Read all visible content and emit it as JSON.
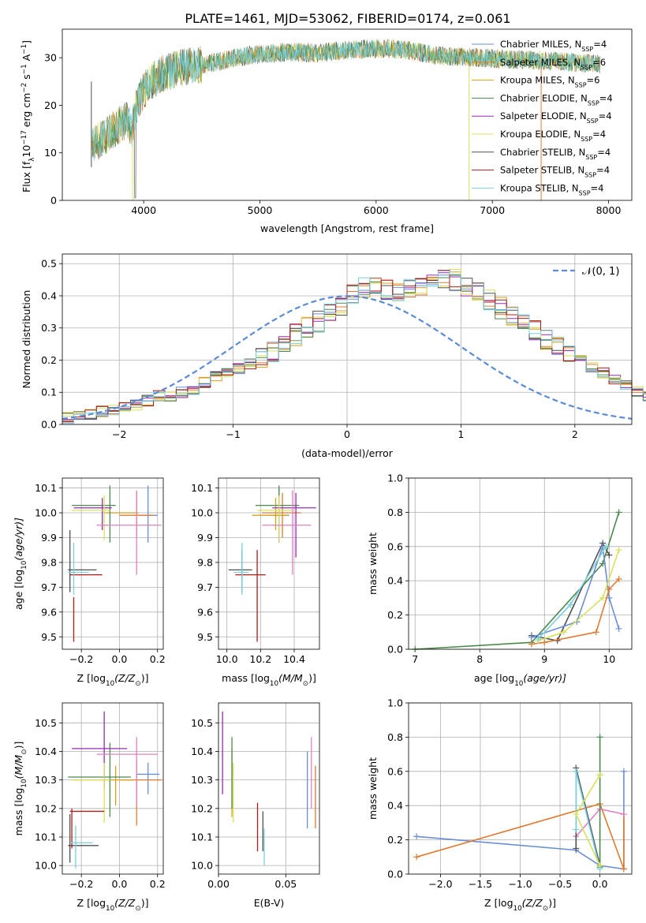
{
  "title": "PLATE=1461, MJD=53062, FIBERID=0174, z=0.061",
  "colors": {
    "chabrier_miles": "#6a8fd6",
    "salpeter_miles": "#e07a30",
    "kroupa_miles": "#d4a017",
    "chabrier_elodie": "#4c8a4c",
    "salpeter_elodie": "#9a2ab8",
    "kroupa_elodie": "#d8e060",
    "chabrier_stelib": "#505050",
    "salpeter_stelib": "#b01c1c",
    "kroupa_stelib": "#78d0e0",
    "pink": "#e080c0",
    "normal": "#5b8bd6"
  },
  "chart_data": [
    {
      "id": "spectrum",
      "type": "line",
      "xlabel": "wavelength [Angstrom, rest frame]",
      "ylabel": "Flux [f",
      "ylabel_parts": [
        "Flux [f",
        "λ",
        "10",
        "−17",
        " erg cm",
        "−2",
        " s",
        "−1",
        " A",
        "−1",
        "]"
      ],
      "xlim": [
        3300,
        8200
      ],
      "ylim": [
        0,
        36
      ],
      "xticks": [
        "4000",
        "5000",
        "6000",
        "7000",
        "8000"
      ],
      "yticks": [
        "0",
        "10",
        "20",
        "30"
      ],
      "legend": [
        {
          "name": "Chabrier MILES, N",
          "n": "4"
        },
        {
          "name": "Salpeter MILES, N",
          "n": "6"
        },
        {
          "name": "Kroupa MILES, N",
          "n": "6"
        },
        {
          "name": "Chabrier ELODIE, N",
          "n": "4"
        },
        {
          "name": "Salpeter ELODIE, N",
          "n": "4"
        },
        {
          "name": "Kroupa ELODIE, N",
          "n": "4"
        },
        {
          "name": "Chabrier STELIB, N",
          "n": "4"
        },
        {
          "name": "Salpeter STELIB, N",
          "n": "4"
        },
        {
          "name": "Kroupa STELIB, N",
          "n": "4"
        }
      ],
      "legend_sub": "SSP",
      "continuum": [
        [
          3550,
          12
        ],
        [
          3650,
          13
        ],
        [
          3750,
          15
        ],
        [
          3850,
          17
        ],
        [
          3900,
          15
        ],
        [
          3950,
          21
        ],
        [
          4050,
          25
        ],
        [
          4200,
          27
        ],
        [
          4350,
          28
        ],
        [
          4500,
          28.5
        ],
        [
          4700,
          29.5
        ],
        [
          4900,
          30.5
        ],
        [
          5100,
          31
        ],
        [
          5300,
          31.2
        ],
        [
          5500,
          31
        ],
        [
          5700,
          31.5
        ],
        [
          5900,
          31.8
        ],
        [
          6100,
          32
        ],
        [
          6300,
          31.5
        ],
        [
          6500,
          30.5
        ],
        [
          6700,
          30.2
        ],
        [
          6900,
          30
        ],
        [
          7100,
          29.7
        ],
        [
          7300,
          29.5
        ],
        [
          7500,
          29.3
        ],
        [
          7700,
          29
        ],
        [
          7900,
          28.7
        ]
      ]
    },
    {
      "id": "residuals",
      "type": "histogram",
      "xlabel": "(data-model)/error",
      "ylabel": "Normed distribution",
      "xlim": [
        -2.5,
        2.5
      ],
      "ylim": [
        0,
        0.53
      ],
      "xticks": [
        "−2",
        "−1",
        "0",
        "1",
        "2"
      ],
      "yticks": [
        "0.0",
        "0.1",
        "0.2",
        "0.3",
        "0.4",
        "0.5"
      ],
      "legend": "𝒩(0, 1)",
      "bin_width": 0.1,
      "values": [
        0.02,
        0.025,
        0.03,
        0.04,
        0.045,
        0.055,
        0.06,
        0.075,
        0.09,
        0.085,
        0.1,
        0.11,
        0.13,
        0.15,
        0.165,
        0.175,
        0.19,
        0.21,
        0.23,
        0.26,
        0.28,
        0.3,
        0.32,
        0.34,
        0.37,
        0.4,
        0.43,
        0.44,
        0.42,
        0.41,
        0.42,
        0.43,
        0.45,
        0.46,
        0.45,
        0.43,
        0.41,
        0.39,
        0.36,
        0.34,
        0.31,
        0.29,
        0.26,
        0.24,
        0.22,
        0.2,
        0.18,
        0.16,
        0.14,
        0.12,
        0.1,
        0.09,
        0.08,
        0.07,
        0.06,
        0.05,
        0.045,
        0.04,
        0.035,
        0.03
      ]
    },
    {
      "id": "age_vs_Z",
      "type": "errorbar",
      "xlabel": "Z [log",
      "xlabel_parts": [
        "Z [log",
        "10",
        "(Z/Z",
        "⊙",
        ")]"
      ],
      "ylabel_parts": [
        "age  [log",
        "10",
        "(age/yr)]"
      ],
      "xlim": [
        -0.3,
        0.23
      ],
      "ylim": [
        9.45,
        10.14
      ],
      "xticks": [
        "−0.2",
        "0.0",
        "0.2"
      ],
      "yticks": [
        "9.5",
        "9.6",
        "9.7",
        "9.8",
        "9.9",
        "10.0",
        "10.1"
      ],
      "points": [
        {
          "c": "chabrier_miles",
          "x": 0.15,
          "xe": [
            0.1,
            0.2
          ],
          "y": 9.99,
          "ye": [
            9.88,
            10.11
          ]
        },
        {
          "c": "salpeter_miles",
          "x": 0.09,
          "xe": [
            0.0,
            0.18
          ],
          "y": 9.99,
          "ye": [
            9.9,
            10.08
          ]
        },
        {
          "c": "kroupa_miles",
          "x": 0.09,
          "xe": [
            -0.08,
            0.1
          ],
          "y": 10.0,
          "ye": [
            9.95,
            10.05
          ]
        },
        {
          "c": "chabrier_elodie",
          "x": -0.05,
          "xe": [
            -0.25,
            -0.02
          ],
          "y": 10.03,
          "ye": [
            9.88,
            10.11
          ]
        },
        {
          "c": "salpeter_elodie",
          "x": -0.09,
          "xe": [
            -0.24,
            -0.04
          ],
          "y": 10.02,
          "ye": [
            9.93,
            10.06
          ]
        },
        {
          "c": "kroupa_elodie",
          "x": -0.08,
          "xe": [
            -0.25,
            -0.05
          ],
          "y": 10.01,
          "ye": [
            9.89,
            10.07
          ]
        },
        {
          "c": "chabrier_stelib",
          "x": -0.26,
          "xe": [
            -0.27,
            -0.12
          ],
          "y": 9.77,
          "ye": [
            9.68,
            9.93
          ]
        },
        {
          "c": "salpeter_stelib",
          "x": -0.24,
          "xe": [
            -0.26,
            -0.09
          ],
          "y": 9.75,
          "ye": [
            9.48,
            9.66
          ]
        },
        {
          "c": "kroupa_stelib",
          "x": -0.24,
          "xe": [
            -0.27,
            -0.16
          ],
          "y": 9.76,
          "ye": [
            9.67,
            9.88
          ]
        },
        {
          "c": "pink",
          "x": 0.09,
          "xe": [
            -0.12,
            0.22
          ],
          "y": 9.95,
          "ye": [
            9.75,
            10.09
          ]
        }
      ]
    },
    {
      "id": "age_vs_mass",
      "type": "errorbar",
      "xlabel_parts": [
        "mass [log",
        "10",
        "(M/M",
        "⊙",
        ")]"
      ],
      "xlim": [
        9.95,
        10.55
      ],
      "ylim": [
        9.45,
        10.14
      ],
      "xticks": [
        "10.0",
        "10.2",
        "10.4"
      ],
      "yticks": [
        "9.5",
        "9.6",
        "9.7",
        "9.8",
        "9.9",
        "10.0",
        "10.1"
      ],
      "points": [
        {
          "c": "chabrier_miles",
          "x": 10.31,
          "xe": [
            10.25,
            10.37
          ],
          "y": 9.99,
          "ye": [
            9.88,
            10.1
          ]
        },
        {
          "c": "salpeter_miles",
          "x": 10.33,
          "xe": [
            10.21,
            10.44
          ],
          "y": 10.0,
          "ye": [
            9.9,
            10.08
          ]
        },
        {
          "c": "kroupa_miles",
          "x": 10.29,
          "xe": [
            10.15,
            10.36
          ],
          "y": 9.99,
          "ye": [
            9.93,
            10.06
          ]
        },
        {
          "c": "chabrier_elodie",
          "x": 10.31,
          "xe": [
            10.17,
            10.43
          ],
          "y": 10.03,
          "ye": [
            9.88,
            10.11
          ]
        },
        {
          "c": "salpeter_elodie",
          "x": 10.41,
          "xe": [
            10.27,
            10.53
          ],
          "y": 10.02,
          "ye": [
            9.82,
            10.08
          ]
        },
        {
          "c": "kroupa_elodie",
          "x": 10.31,
          "xe": [
            10.18,
            10.39
          ],
          "y": 10.01,
          "ye": [
            9.88,
            10.07
          ]
        },
        {
          "c": "chabrier_stelib",
          "x": 10.09,
          "xe": [
            10.01,
            10.15
          ],
          "y": 9.77,
          "ye": [
            9.68,
            9.85
          ]
        },
        {
          "c": "salpeter_stelib",
          "x": 10.18,
          "xe": [
            10.05,
            10.23
          ],
          "y": 9.75,
          "ye": [
            9.48,
            9.85
          ]
        },
        {
          "c": "kroupa_stelib",
          "x": 10.09,
          "xe": [
            10.04,
            10.13
          ],
          "y": 9.76,
          "ye": [
            9.67,
            9.88
          ]
        },
        {
          "c": "pink",
          "x": 10.39,
          "xe": [
            10.21,
            10.5
          ],
          "y": 9.95,
          "ye": [
            9.75,
            10.09
          ]
        }
      ]
    },
    {
      "id": "massweight_vs_age",
      "type": "line",
      "xlabel_parts": [
        "age  [log",
        "10",
        "(age/yr)]"
      ],
      "ylabel": "mass weight",
      "xlim": [
        6.9,
        10.35
      ],
      "ylim": [
        0,
        1
      ],
      "xticks": [
        "7",
        "8",
        "9",
        "10"
      ],
      "yticks": [
        "0.0",
        "0.2",
        "0.4",
        "0.6",
        "0.8",
        "1.0"
      ],
      "series": [
        {
          "c": "chabrier_elodie",
          "x": [
            7.0,
            8.8,
            9.9,
            10.15
          ],
          "y": [
            0.0,
            0.04,
            0.5,
            0.8
          ]
        },
        {
          "c": "chabrier_stelib",
          "x": [
            8.8,
            9.2,
            9.9,
            10.0
          ],
          "y": [
            0.08,
            0.05,
            0.62,
            0.55
          ]
        },
        {
          "c": "chabrier_miles",
          "x": [
            8.8,
            9.5,
            9.9,
            10.0,
            10.15
          ],
          "y": [
            0.07,
            0.16,
            0.6,
            0.3,
            0.12
          ]
        },
        {
          "c": "salpeter_miles",
          "x": [
            8.8,
            9.0,
            9.8,
            10.0,
            10.15
          ],
          "y": [
            0.03,
            0.04,
            0.1,
            0.35,
            0.41
          ]
        },
        {
          "c": "kroupa_elodie",
          "x": [
            8.9,
            9.3,
            9.9,
            10.15
          ],
          "y": [
            0.05,
            0.1,
            0.3,
            0.58
          ]
        },
        {
          "c": "kroupa_stelib",
          "x": [
            8.9,
            9.4,
            9.95
          ],
          "y": [
            0.06,
            0.26,
            0.6
          ]
        }
      ]
    },
    {
      "id": "mass_vs_Z",
      "type": "errorbar",
      "xlabel_parts": [
        "Z [log",
        "10",
        "(Z/Z",
        "⊙",
        ")]"
      ],
      "ylabel_parts": [
        "mass [log",
        "10",
        "(M/M",
        "⊙",
        ")]"
      ],
      "xlim": [
        -0.3,
        0.23
      ],
      "ylim": [
        9.97,
        10.57
      ],
      "xticks": [
        "−0.2",
        "0.0",
        "0.2"
      ],
      "yticks": [
        "10.0",
        "10.1",
        "10.2",
        "10.3",
        "10.4",
        "10.5"
      ],
      "points": [
        {
          "c": "chabrier_miles",
          "x": 0.15,
          "xe": [
            0.09,
            0.21
          ],
          "y": 10.32,
          "ye": [
            10.25,
            10.36
          ]
        },
        {
          "c": "salpeter_miles",
          "x": 0.09,
          "xe": [
            0.0,
            0.22
          ],
          "y": 10.3,
          "ye": [
            10.14,
            10.37
          ]
        },
        {
          "c": "kroupa_miles",
          "x": -0.02,
          "xe": [
            -0.25,
            0.08
          ],
          "y": 10.3,
          "ye": [
            10.21,
            10.35
          ]
        },
        {
          "c": "chabrier_elodie",
          "x": -0.05,
          "xe": [
            -0.27,
            0.06
          ],
          "y": 10.31,
          "ye": [
            10.17,
            10.43
          ]
        },
        {
          "c": "salpeter_elodie",
          "x": -0.08,
          "xe": [
            -0.25,
            0.04
          ],
          "y": 10.41,
          "ye": [
            10.27,
            10.54
          ]
        },
        {
          "c": "kroupa_elodie",
          "x": -0.08,
          "xe": [
            -0.25,
            -0.05
          ],
          "y": 10.3,
          "ye": [
            10.15,
            10.36
          ]
        },
        {
          "c": "chabrier_stelib",
          "x": -0.26,
          "xe": [
            -0.27,
            -0.11
          ],
          "y": 10.07,
          "ye": [
            10.01,
            10.18
          ]
        },
        {
          "c": "salpeter_stelib",
          "x": -0.25,
          "xe": [
            -0.26,
            -0.08
          ],
          "y": 10.19,
          "ye": [
            10.06,
            10.2
          ]
        },
        {
          "c": "kroupa_stelib",
          "x": -0.23,
          "xe": [
            -0.26,
            -0.14
          ],
          "y": 10.08,
          "ye": [
            9.99,
            10.14
          ]
        },
        {
          "c": "pink",
          "x": 0.09,
          "xe": [
            -0.12,
            0.2
          ],
          "y": 10.39,
          "ye": [
            10.21,
            10.45
          ]
        }
      ]
    },
    {
      "id": "mass_vs_ebv",
      "type": "errorbar",
      "xlabel": "E(B-V)",
      "xlim": [
        0.0,
        0.075
      ],
      "ylim": [
        9.97,
        10.57
      ],
      "xticks": [
        "0.00",
        "0.05"
      ],
      "yticks": [
        "10.0",
        "10.1",
        "10.2",
        "10.3",
        "10.4",
        "10.5"
      ],
      "points": [
        {
          "c": "chabrier_miles",
          "x": 0.066,
          "ye": [
            10.13,
            10.4
          ]
        },
        {
          "c": "salpeter_miles",
          "x": 0.072,
          "ye": [
            10.13,
            10.35
          ]
        },
        {
          "c": "kroupa_miles",
          "x": 0.01,
          "ye": [
            10.17,
            10.41
          ]
        },
        {
          "c": "chabrier_elodie",
          "x": 0.01,
          "ye": [
            10.2,
            10.45
          ]
        },
        {
          "c": "salpeter_elodie",
          "x": 0.003,
          "ye": [
            10.25,
            10.54
          ]
        },
        {
          "c": "kroupa_elodie",
          "x": 0.011,
          "ye": [
            10.15,
            10.36
          ]
        },
        {
          "c": "chabrier_stelib",
          "x": 0.033,
          "ye": [
            10.05,
            10.19
          ]
        },
        {
          "c": "salpeter_stelib",
          "x": 0.029,
          "ye": [
            10.05,
            10.22
          ]
        },
        {
          "c": "kroupa_stelib",
          "x": 0.034,
          "ye": [
            10.0,
            10.13
          ]
        },
        {
          "c": "pink",
          "x": 0.069,
          "ye": [
            10.2,
            10.45
          ]
        }
      ]
    },
    {
      "id": "massweight_vs_Z",
      "type": "line",
      "xlabel_parts": [
        "Z [log",
        "10",
        "(Z/Z",
        "⊙",
        ")]"
      ],
      "ylabel": "mass weight",
      "xlim": [
        -2.4,
        0.4
      ],
      "ylim": [
        0,
        1
      ],
      "xticks": [
        "−2.0",
        "−1.5",
        "−1.0",
        "−0.5",
        "0.0"
      ],
      "yticks": [
        "0.0",
        "0.2",
        "0.4",
        "0.6",
        "0.8",
        "1.0"
      ],
      "series": [
        {
          "c": "chabrier_miles",
          "x": [
            -2.3,
            -0.3,
            0.0,
            0.3,
            0.3
          ],
          "y": [
            0.22,
            0.14,
            0.05,
            0.03,
            0.6
          ]
        },
        {
          "c": "salpeter_miles",
          "x": [
            -2.3,
            0.0,
            0.3,
            0.3
          ],
          "y": [
            0.1,
            0.41,
            0.03,
            0.35
          ]
        },
        {
          "c": "pink",
          "x": [
            -0.3,
            0.0,
            0.3
          ],
          "y": [
            0.22,
            0.38,
            0.35
          ]
        },
        {
          "c": "chabrier_stelib",
          "x": [
            -0.3,
            -0.3,
            0.0,
            0.0
          ],
          "y": [
            0.15,
            0.62,
            0.05,
            0.05
          ]
        },
        {
          "c": "chabrier_elodie",
          "x": [
            0.0,
            0.0,
            0.0
          ],
          "y": [
            0.04,
            0.8,
            0.58
          ]
        },
        {
          "c": "kroupa_stelib",
          "x": [
            -0.3,
            -0.3,
            0.0
          ],
          "y": [
            0.26,
            0.6,
            0.03
          ]
        },
        {
          "c": "kroupa_elodie",
          "x": [
            0.0,
            -0.3,
            0.0
          ],
          "y": [
            0.58,
            0.35,
            0.05
          ]
        }
      ]
    }
  ]
}
